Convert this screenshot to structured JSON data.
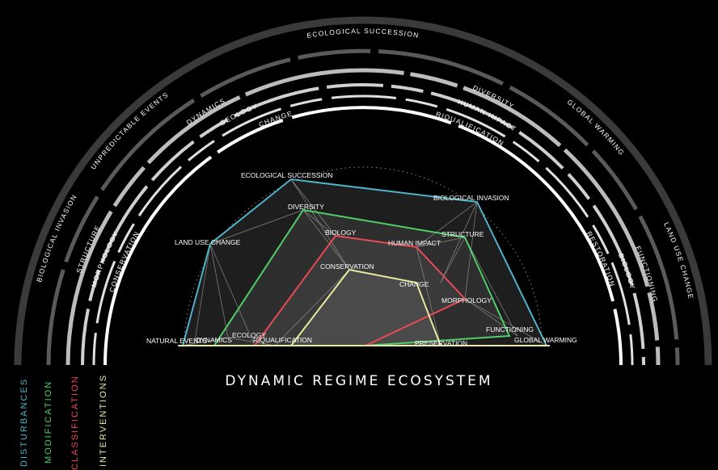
{
  "title": "DYNAMIC REGIME ECOSYSTEM",
  "legend": [
    {
      "label": "DISTURBANCES",
      "color": "#4fb3c8"
    },
    {
      "label": "MODIFICATION",
      "color": "#4fcf6a"
    },
    {
      "label": "CLASSIFICATION",
      "color": "#e84a55"
    },
    {
      "label": "INTERVENTIONS",
      "color": "#e8e8a0"
    }
  ],
  "rings": [
    {
      "labels_left": [
        "BIOLOGICAL INVASION",
        "UNPREDICTABLE EVENTS"
      ],
      "labels_top": [
        "ECOLOGICAL SUCCESSION"
      ],
      "labels_right": [
        "GLOBAL WARMING",
        "LAND USE CHANGE"
      ]
    },
    {
      "labels_left": [
        "STRUCTURE",
        "DYNAMICS"
      ],
      "labels_right": [
        "DIVERSITY",
        "FUNCTIONING"
      ]
    },
    {
      "labels_left": [
        "MORPHOLOGY",
        "GEOLOGY"
      ],
      "labels_right": [
        "HUMAN IMPACT",
        "BIOLOGY"
      ]
    },
    {
      "labels_left": [
        "CONSERVATION",
        "CHANGE"
      ],
      "labels_right": [
        "RIQUALIFICATION",
        "RESTORATION"
      ]
    }
  ],
  "nodes": {
    "ecological_succession": "ECOLOGICAL SUCCESSION",
    "biological_invasion": "BIOLOGICAL INVASION",
    "diversity": "DIVERSITY",
    "land_use_change": "LAND USE CHANGE",
    "biology": "BIOLOGY",
    "human_impact": "HUMAN IMPACT",
    "structure": "STRUCTURE",
    "conservation": "CONSERVATION",
    "change": "CHANGE",
    "morphology": "MORPHOLOGY",
    "functioning": "FUNCTIONING",
    "global_warming": "GLOBAL WARMING",
    "natural_events": "NATURAL EVENTS",
    "dynamics": "DYNAMICS",
    "ecology": "ECOLOGY",
    "riqualification": "RIQUALIFICATION",
    "preservation": "PRESERVATION"
  }
}
